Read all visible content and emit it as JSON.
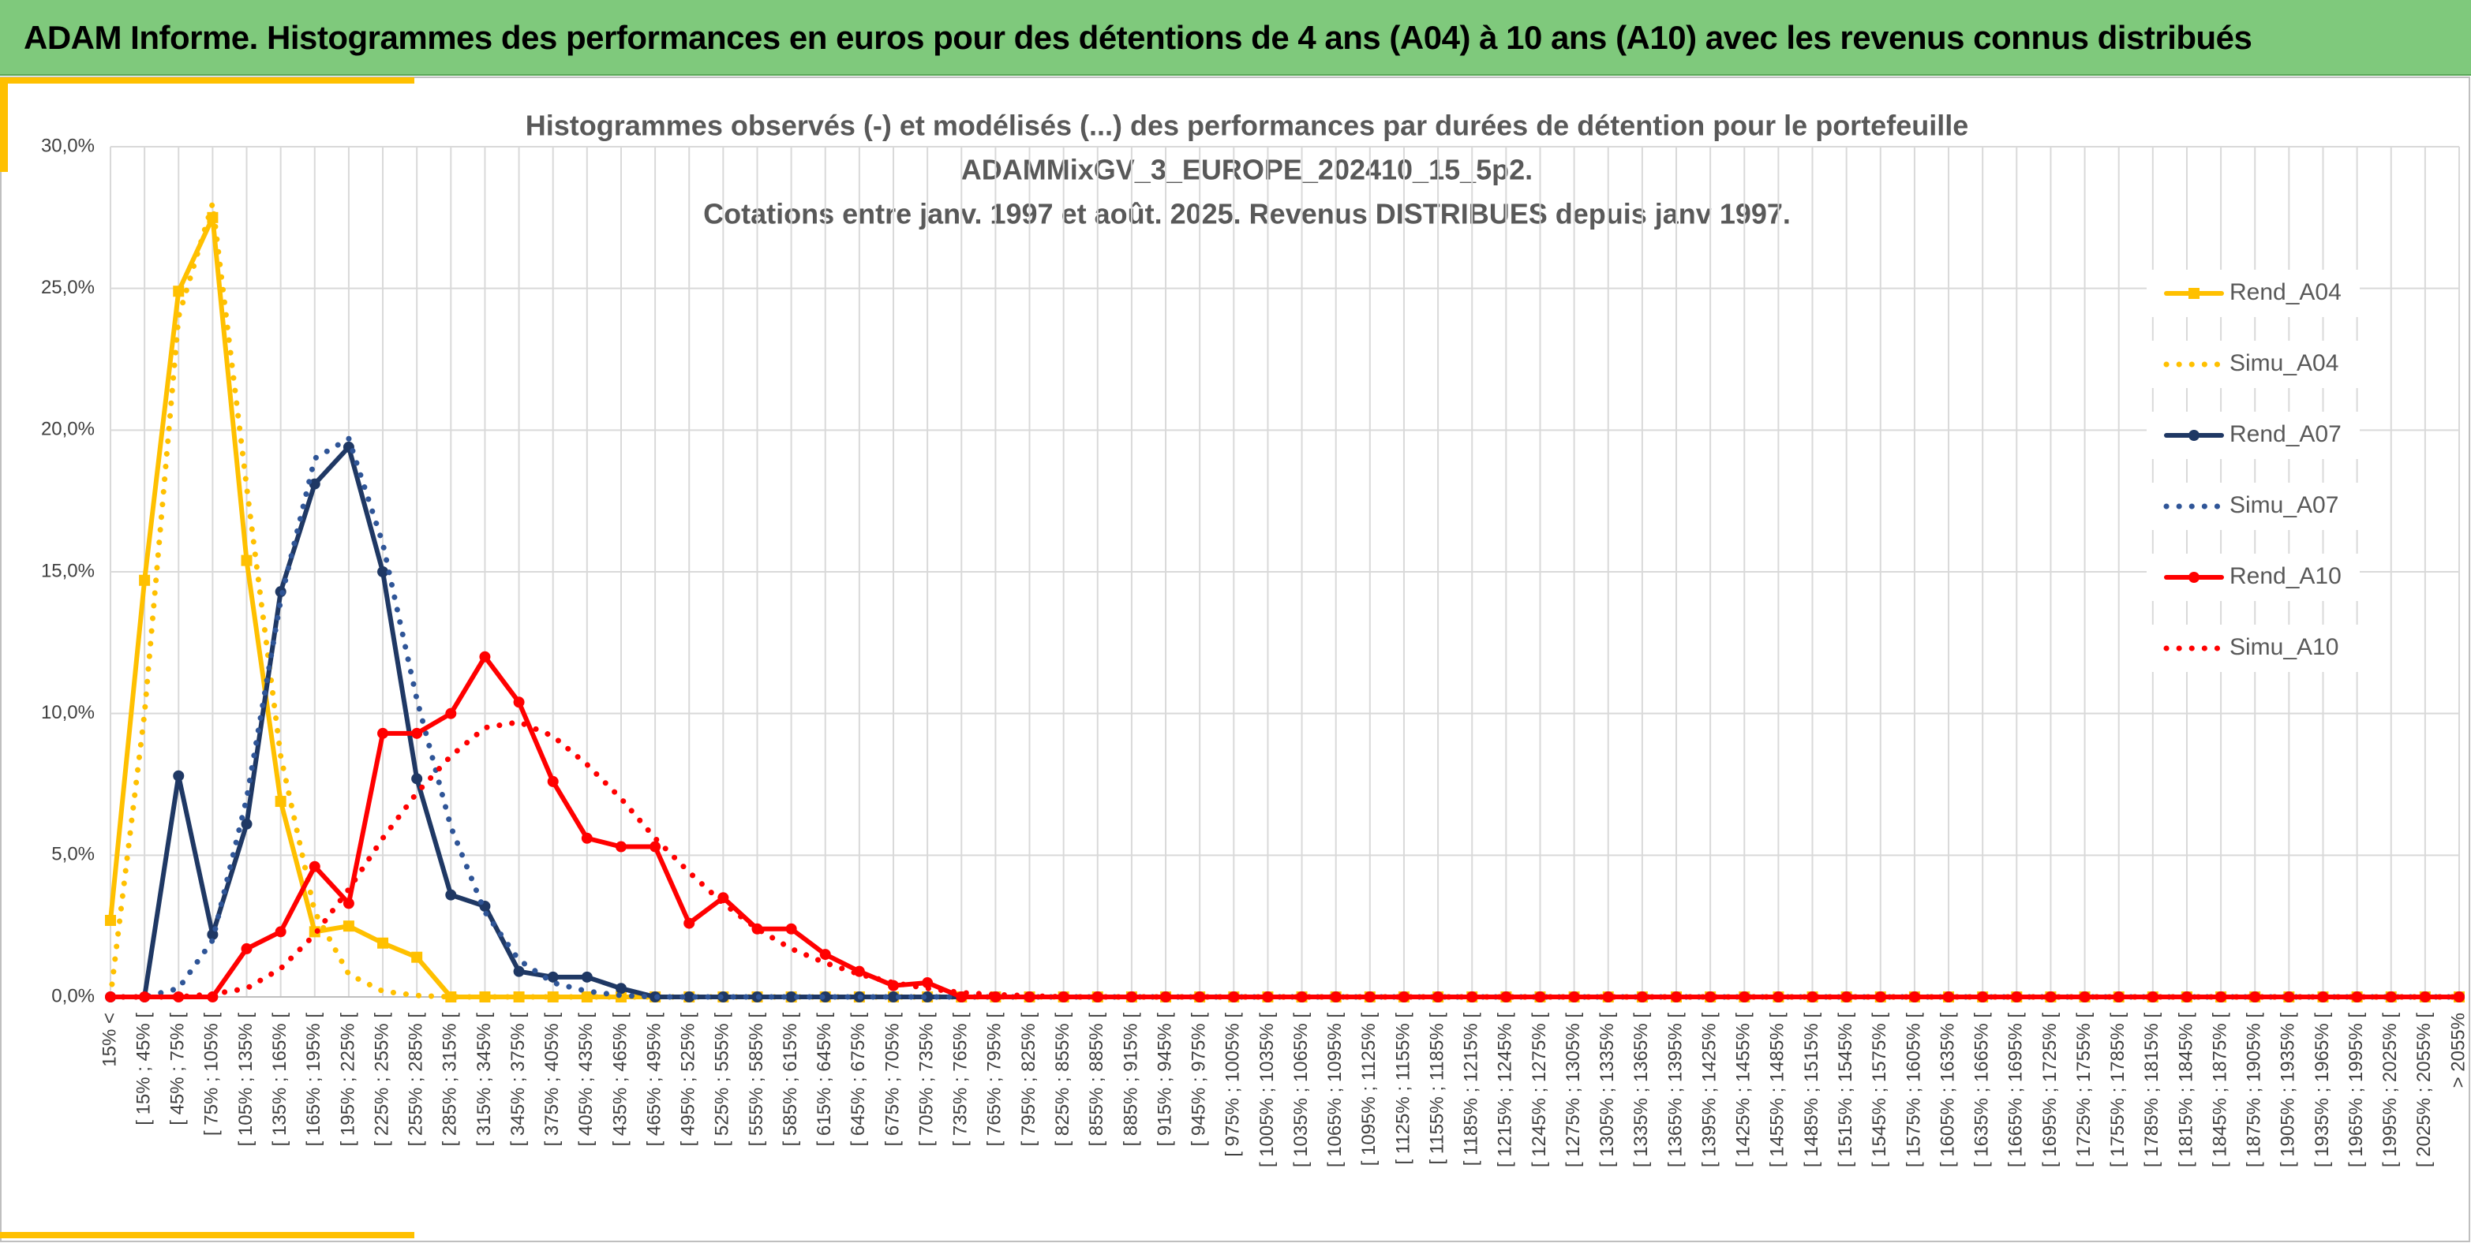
{
  "header": {
    "title": "ADAM Informe. Histogrammes des performances en euros pour des détentions de 4 ans (A04) à 10 ans (A10) avec les revenus connus distribués"
  },
  "chart_data": {
    "type": "line",
    "title": [
      "Histogrammes observés (-) et modélisés (...) des performances par durées de détention pour le portefeuille",
      "ADAMMixGV_3_EUROPE_202410_15_5p2.",
      "Cotations entre janv. 1997 et août. 2025. Revenus DISTRIBUES depuis janv 1997."
    ],
    "categories": [
      "15% <",
      "[ 15% ; 45% [",
      "[ 45% ; 75% [",
      "[ 75% ; 105% [",
      "[ 105% ; 135% [",
      "[ 135% ; 165% [",
      "[ 165% ; 195% [",
      "[ 195% ; 225% [",
      "[ 225% ; 255% [",
      "[ 255% ; 285% [",
      "[ 285% ; 315% [",
      "[ 315% ; 345% [",
      "[ 345% ; 375% [",
      "[ 375% ; 405% [",
      "[ 405% ; 435% [",
      "[ 435% ; 465% [",
      "[ 465% ; 495% [",
      "[ 495% ; 525% [",
      "[ 525% ; 555% [",
      "[ 555% ; 585% [",
      "[ 585% ; 615% [",
      "[ 615% ; 645% [",
      "[ 645% ; 675% [",
      "[ 675% ; 705% [",
      "[ 705% ; 735% [",
      "[ 735% ; 765% [",
      "[ 765% ; 795% [",
      "[ 795% ; 825% [",
      "[ 825% ; 855% [",
      "[ 855% ; 885% [",
      "[ 885% ; 915% [",
      "[ 915% ; 945% [",
      "[ 945% ; 975% [",
      "[ 975% ; 1005% [",
      "[ 1005% ; 1035% [",
      "[ 1035% ; 1065% [",
      "[ 1065% ; 1095% [",
      "[ 1095% ; 1125% [",
      "[ 1125% ; 1155% [",
      "[ 1155% ; 1185% [",
      "[ 1185% ; 1215% [",
      "[ 1215% ; 1245% [",
      "[ 1245% ; 1275% [",
      "[ 1275% ; 1305% [",
      "[ 1305% ; 1335% [",
      "[ 1335% ; 1365% [",
      "[ 1365% ; 1395% [",
      "[ 1395% ; 1425% [",
      "[ 1425% ; 1455% [",
      "[ 1455% ; 1485% [",
      "[ 1485% ; 1515% [",
      "[ 1515% ; 1545% [",
      "[ 1545% ; 1575% [",
      "[ 1575% ; 1605% [",
      "[ 1605% ; 1635% [",
      "[ 1635% ; 1665% [",
      "[ 1665% ; 1695% [",
      "[ 1695% ; 1725% [",
      "[ 1725% ; 1755% [",
      "[ 1755% ; 1785% [",
      "[ 1785% ; 1815% [",
      "[ 1815% ; 1845% [",
      "[ 1845% ; 1875% [",
      "[ 1875% ; 1905% [",
      "[ 1905% ; 1935% [",
      "[ 1935% ; 1965% [",
      "[ 1965% ; 1995% [",
      "[ 1995% ; 2025% [",
      "[ 2025% ; 2055% [",
      "> 2055%"
    ],
    "series": [
      {
        "name": "Rend_A04",
        "color": "#FFC000",
        "dash": "solid",
        "marker": "square",
        "values": [
          2.7,
          14.7,
          24.9,
          27.5,
          15.4,
          6.9,
          2.3,
          2.5,
          1.9,
          1.4,
          0,
          0,
          0,
          0,
          0,
          0,
          0,
          0,
          0,
          0,
          0,
          0,
          0,
          0,
          0,
          0,
          0,
          0,
          0,
          0,
          0,
          0,
          0,
          0,
          0,
          0,
          0,
          0,
          0,
          0,
          0,
          0,
          0,
          0,
          0,
          0,
          0,
          0,
          0,
          0,
          0,
          0,
          0,
          0,
          0,
          0,
          0,
          0,
          0,
          0,
          0,
          0,
          0,
          0,
          0,
          0,
          0,
          0,
          0,
          0
        ]
      },
      {
        "name": "Simu_A04",
        "color": "#FFC000",
        "dash": "dotted",
        "marker": "none",
        "values": [
          0,
          10,
          24,
          28,
          18,
          8.5,
          3,
          0.8,
          0.2,
          0.05,
          0,
          0,
          0,
          0,
          0,
          0,
          0,
          0,
          0,
          0,
          0,
          0,
          0,
          0,
          0,
          0,
          0,
          0,
          0,
          0,
          0,
          0,
          0,
          0,
          0,
          0,
          0,
          0,
          0,
          0,
          0,
          0,
          0,
          0,
          0,
          0,
          0,
          0,
          0,
          0,
          0,
          0,
          0,
          0,
          0,
          0,
          0,
          0,
          0,
          0,
          0,
          0,
          0,
          0,
          0,
          0,
          0,
          0,
          0,
          0
        ]
      },
      {
        "name": "Rend_A07",
        "color": "#1F3864",
        "dash": "solid",
        "marker": "circle",
        "values": [
          0,
          0,
          7.8,
          2.2,
          6.1,
          14.3,
          18.1,
          19.4,
          15,
          7.7,
          3.6,
          3.2,
          0.9,
          0.7,
          0.7,
          0.3,
          0,
          0,
          0,
          0,
          0,
          0,
          0,
          0,
          0,
          0,
          0,
          0,
          0,
          0,
          0,
          0,
          0,
          0,
          0,
          0,
          0,
          0,
          0,
          0,
          0,
          0,
          0,
          0,
          0,
          0,
          0,
          0,
          0,
          0,
          0,
          0,
          0,
          0,
          0,
          0,
          0,
          0,
          0,
          0,
          0,
          0,
          0,
          0,
          0,
          0,
          0,
          0,
          0,
          0
        ]
      },
      {
        "name": "Simu_A07",
        "color": "#2F5597",
        "dash": "dotted",
        "marker": "none",
        "values": [
          0,
          0,
          0.3,
          2,
          7,
          14,
          19,
          19.7,
          16,
          10.5,
          6,
          3,
          1.3,
          0.5,
          0.2,
          0.05,
          0,
          0,
          0,
          0,
          0,
          0,
          0,
          0,
          0,
          0,
          0,
          0,
          0,
          0,
          0,
          0,
          0,
          0,
          0,
          0,
          0,
          0,
          0,
          0,
          0,
          0,
          0,
          0,
          0,
          0,
          0,
          0,
          0,
          0,
          0,
          0,
          0,
          0,
          0,
          0,
          0,
          0,
          0,
          0,
          0,
          0,
          0,
          0,
          0,
          0,
          0,
          0,
          0,
          0
        ]
      },
      {
        "name": "Rend_A10",
        "color": "#FF0000",
        "dash": "solid",
        "marker": "circle",
        "values": [
          0,
          0,
          0,
          0,
          1.7,
          2.3,
          4.6,
          3.3,
          9.3,
          9.3,
          10,
          12,
          10.4,
          7.6,
          5.6,
          5.3,
          5.3,
          2.6,
          3.5,
          2.4,
          2.4,
          1.5,
          0.9,
          0.4,
          0.5,
          0,
          0,
          0,
          0,
          0,
          0,
          0,
          0,
          0,
          0,
          0,
          0,
          0,
          0,
          0,
          0,
          0,
          0,
          0,
          0,
          0,
          0,
          0,
          0,
          0,
          0,
          0,
          0,
          0,
          0,
          0,
          0,
          0,
          0,
          0,
          0,
          0,
          0,
          0,
          0,
          0,
          0,
          0,
          0,
          0
        ]
      },
      {
        "name": "Simu_A10",
        "color": "#FF0000",
        "dash": "dotted",
        "marker": "none",
        "values": [
          0,
          0,
          0,
          0.1,
          0.3,
          1,
          2.2,
          3.8,
          5.6,
          7.2,
          8.5,
          9.5,
          9.7,
          9.2,
          8.2,
          7,
          5.6,
          4.4,
          3.3,
          2.4,
          1.7,
          1.2,
          0.8,
          0.5,
          0.3,
          0.15,
          0.08,
          0.04,
          0,
          0,
          0,
          0,
          0,
          0,
          0,
          0,
          0,
          0,
          0,
          0,
          0,
          0,
          0,
          0,
          0,
          0,
          0,
          0,
          0,
          0,
          0,
          0,
          0,
          0,
          0,
          0,
          0,
          0,
          0,
          0,
          0,
          0,
          0,
          0,
          0,
          0,
          0,
          0,
          0,
          0
        ]
      }
    ],
    "ylim": [
      0,
      30
    ],
    "yticks": [
      {
        "value": 0,
        "label": "0,0%"
      },
      {
        "value": 5,
        "label": "5,0%"
      },
      {
        "value": 10,
        "label": "10,0%"
      },
      {
        "value": 15,
        "label": "15,0%"
      },
      {
        "value": 20,
        "label": "20,0%"
      },
      {
        "value": 25,
        "label": "25,0%"
      },
      {
        "value": 30,
        "label": "30,0%"
      }
    ],
    "grid": true,
    "legend": "right"
  }
}
